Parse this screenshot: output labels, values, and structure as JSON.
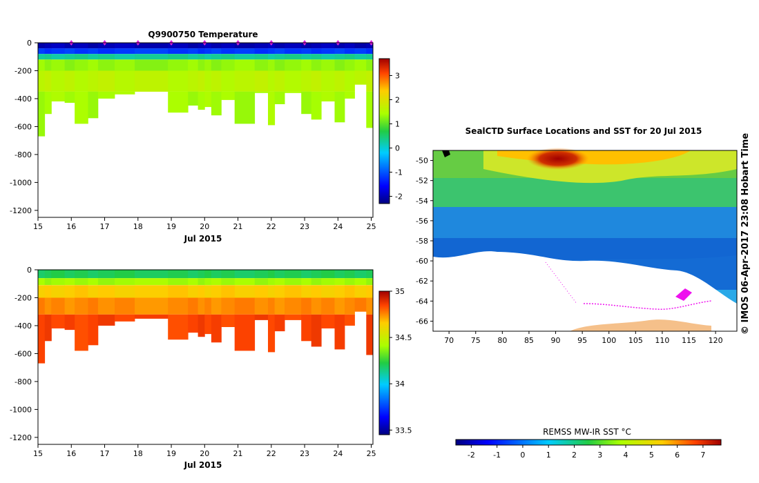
{
  "charts": {
    "temperature": {
      "type": "heatmap",
      "title": "Q9900750  Temperature",
      "xlabel": "Jul 2015",
      "x_ticks": [
        "15",
        "16",
        "17",
        "18",
        "19",
        "20",
        "21",
        "22",
        "23",
        "24",
        "25"
      ],
      "y_ticks": [
        "0",
        "-200",
        "-400",
        "-600",
        "-800",
        "-1000",
        "-1200"
      ],
      "xlim": [
        15,
        25.05
      ],
      "ylim": [
        -1250,
        0
      ],
      "colorbar": {
        "ticks": [
          "3",
          "2",
          "1",
          "0",
          "-1",
          "-2"
        ],
        "min": -2.3,
        "max": 3.7
      },
      "profile_markers_day": [
        16.0,
        17.0,
        18.0,
        19.0,
        20.0,
        21.0,
        22.0,
        23.0,
        24.0,
        25.0
      ],
      "profiles": [
        {
          "t": 15.0,
          "maxdepth": -670
        },
        {
          "t": 15.2,
          "maxdepth": -510
        },
        {
          "t": 15.4,
          "maxdepth": -420
        },
        {
          "t": 15.8,
          "maxdepth": -430
        },
        {
          "t": 16.1,
          "maxdepth": -580
        },
        {
          "t": 16.5,
          "maxdepth": -540
        },
        {
          "t": 16.8,
          "maxdepth": -400
        },
        {
          "t": 17.3,
          "maxdepth": -370
        },
        {
          "t": 17.9,
          "maxdepth": -350
        },
        {
          "t": 18.9,
          "maxdepth": -500
        },
        {
          "t": 19.5,
          "maxdepth": -450
        },
        {
          "t": 19.8,
          "maxdepth": -480
        },
        {
          "t": 20.0,
          "maxdepth": -460
        },
        {
          "t": 20.2,
          "maxdepth": -520
        },
        {
          "t": 20.5,
          "maxdepth": -410
        },
        {
          "t": 20.9,
          "maxdepth": -580
        },
        {
          "t": 21.5,
          "maxdepth": -360
        },
        {
          "t": 21.9,
          "maxdepth": -590
        },
        {
          "t": 22.1,
          "maxdepth": -440
        },
        {
          "t": 22.4,
          "maxdepth": -360
        },
        {
          "t": 22.9,
          "maxdepth": -510
        },
        {
          "t": 23.2,
          "maxdepth": -550
        },
        {
          "t": 23.5,
          "maxdepth": -420
        },
        {
          "t": 23.9,
          "maxdepth": -570
        },
        {
          "t": 24.2,
          "maxdepth": -400
        },
        {
          "t": 24.5,
          "maxdepth": -300
        },
        {
          "t": 24.85,
          "maxdepth": -610
        }
      ],
      "layers": [
        {
          "top": 0,
          "bottom": -40,
          "value": -2.0
        },
        {
          "top": -40,
          "bottom": -80,
          "value": -1.2
        },
        {
          "top": -80,
          "bottom": -120,
          "value": 0.3
        },
        {
          "top": -120,
          "bottom": -200,
          "value": 1.3
        },
        {
          "top": -200,
          "bottom": -350,
          "value": 1.6
        },
        {
          "top": -350,
          "bottom": -700,
          "value": 1.4
        }
      ]
    },
    "salinity": {
      "type": "heatmap",
      "title": "",
      "xlabel": "Jul 2015",
      "x_ticks": [
        "15",
        "16",
        "17",
        "18",
        "19",
        "20",
        "21",
        "22",
        "23",
        "24",
        "25"
      ],
      "y_ticks": [
        "0",
        "-200",
        "-400",
        "-600",
        "-800",
        "-1000",
        "-1200"
      ],
      "xlim": [
        15,
        25.05
      ],
      "ylim": [
        -1250,
        0
      ],
      "colorbar": {
        "ticks": [
          "35",
          "34.5",
          "34",
          "33.5"
        ],
        "min": 33.45,
        "max": 35.0
      },
      "layers": [
        {
          "top": 0,
          "bottom": -60,
          "value": 34.2
        },
        {
          "top": -60,
          "bottom": -110,
          "value": 34.4
        },
        {
          "top": -110,
          "bottom": -200,
          "value": 34.65
        },
        {
          "top": -200,
          "bottom": -320,
          "value": 34.75
        },
        {
          "top": -320,
          "bottom": -700,
          "value": 34.85
        }
      ]
    },
    "sst_map": {
      "type": "heatmap",
      "title": "SealCTD Surface Locations and SST for 20 Jul 2015",
      "x_ticks": [
        "70",
        "75",
        "80",
        "85",
        "90",
        "95",
        "100",
        "105",
        "110",
        "115",
        "120"
      ],
      "y_ticks": [
        "-50",
        "-52",
        "-54",
        "-56",
        "-58",
        "-60",
        "-62",
        "-64",
        "-66"
      ],
      "xlim": [
        67,
        124
      ],
      "ylim": [
        -67,
        -49
      ],
      "colorbar_label": "REMSS MW-IR SST °C",
      "colorbar": {
        "ticks": [
          "-2",
          "-1",
          "0",
          "1",
          "2",
          "3",
          "4",
          "5",
          "6",
          "7"
        ],
        "min": -2.6,
        "max": 7.7
      }
    }
  },
  "credit": "© IMOS 06-Apr-2017 23:08 Hobart Time"
}
